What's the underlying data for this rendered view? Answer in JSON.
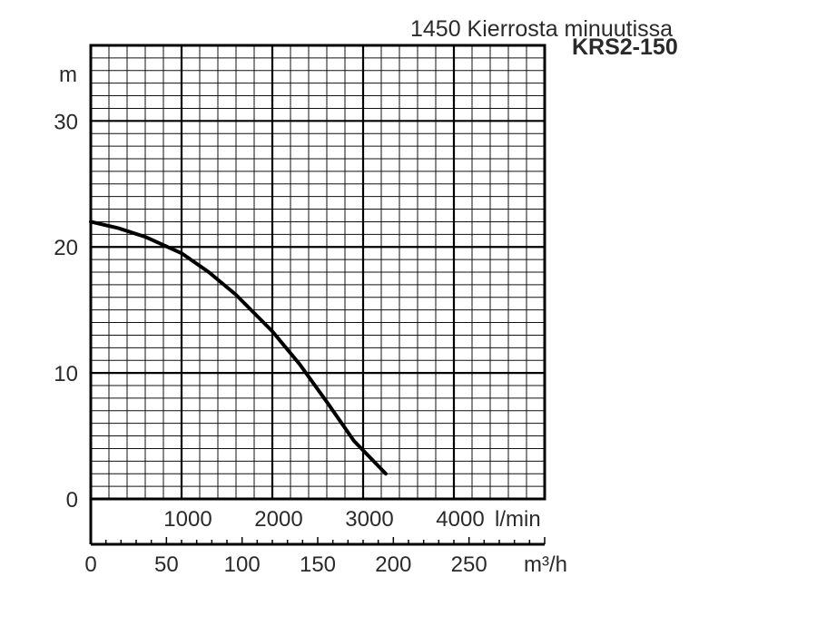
{
  "chart_data": {
    "type": "line",
    "title": "1450 Kierrosta minuutissa",
    "subtitle": "KRS2-150",
    "ylabel": "m",
    "xlabel": "l/min",
    "x2label": "m³/h",
    "ylim": [
      0,
      36
    ],
    "xlim": [
      0,
      5000
    ],
    "x2lim": [
      0,
      300
    ],
    "yticks": [
      0,
      10,
      20,
      30
    ],
    "xticks": [
      1000,
      2000,
      3000,
      4000
    ],
    "x2ticks": [
      0,
      50,
      100,
      150,
      200,
      250
    ],
    "grid": true,
    "series": [
      {
        "x": [
          0,
          300,
          600,
          1000,
          1300,
          1600,
          2000,
          2300,
          2600,
          2900,
          3250
        ],
        "y": [
          22.0,
          21.5,
          20.8,
          19.5,
          18.0,
          16.2,
          13.3,
          10.7,
          7.7,
          4.6,
          2.0
        ]
      }
    ]
  }
}
